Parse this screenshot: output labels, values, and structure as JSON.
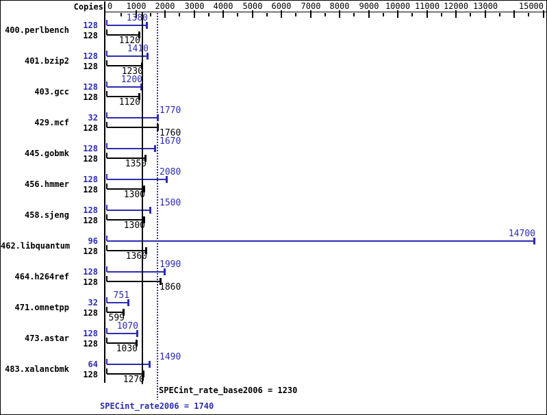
{
  "chart_data": {
    "type": "bar",
    "orientation": "horizontal",
    "copies_column_label": "Copies",
    "x_axis": {
      "min": 0,
      "max": 15000,
      "major_tick_step": 1000,
      "minor_tick_step": 500,
      "tick_labels": [
        "0",
        "1000",
        "2000",
        "3000",
        "4000",
        "5000",
        "6000",
        "7000",
        "8000",
        "9000",
        "10000",
        "11000",
        "12000",
        "13000",
        "15000"
      ]
    },
    "categories": [
      "400.perlbench",
      "401.bzip2",
      "403.gcc",
      "429.mcf",
      "445.gobmk",
      "456.hmmer",
      "458.sjeng",
      "462.libquantum",
      "464.h264ref",
      "471.omnetpp",
      "473.astar",
      "483.xalancbmk"
    ],
    "series": [
      {
        "name": "peak",
        "metric": "SPECint_rate2006",
        "color": "#2b2bb0",
        "copies": [
          128,
          128,
          128,
          32,
          128,
          128,
          128,
          96,
          128,
          32,
          128,
          64
        ],
        "values": [
          1380,
          1410,
          1200,
          1770,
          1670,
          2080,
          1500,
          14700,
          1990,
          751,
          1070,
          1490
        ]
      },
      {
        "name": "base",
        "metric": "SPECint_rate_base2006",
        "color": "#000000",
        "copies": [
          128,
          128,
          128,
          128,
          128,
          128,
          128,
          128,
          128,
          128,
          128,
          128
        ],
        "values": [
          1120,
          1230,
          1120,
          1760,
          1350,
          1300,
          1300,
          1360,
          1860,
          599,
          1030,
          1270
        ]
      }
    ],
    "reference_lines": [
      {
        "series": "base",
        "value": 1230,
        "style": "solid",
        "color": "#000000",
        "caption": "SPECint_rate_base2006 = 1230"
      },
      {
        "series": "peak",
        "value": 1740,
        "style": "dotted",
        "color": "#2b2bb0",
        "caption": "SPECint_rate2006 = 1740"
      }
    ],
    "colors": {
      "background": "#ffffff",
      "axis": "#000000"
    }
  }
}
